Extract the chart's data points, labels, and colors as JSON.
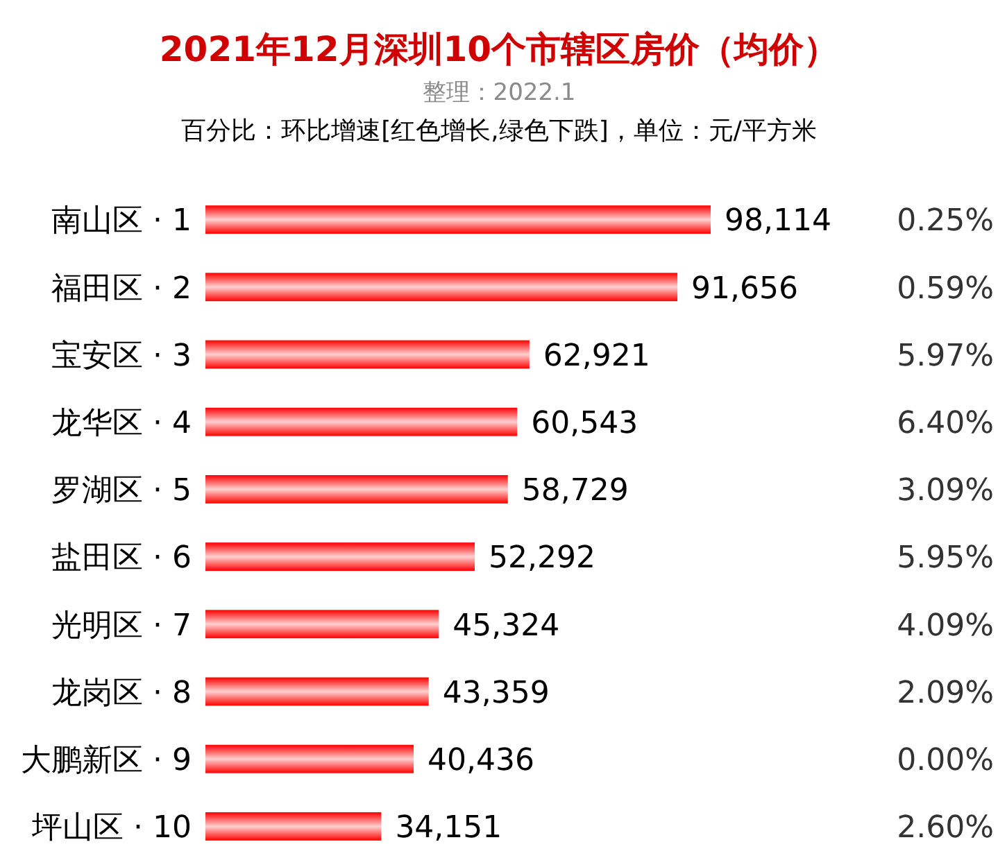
{
  "chart_data": {
    "type": "bar",
    "orientation": "horizontal",
    "title": "2021年12月深圳10个市辖区房价（均价）",
    "subtitle": "整理：2022.1",
    "annotations": [
      "百分比：环比增速[红色增长,绿色下跌]，单位：元/平方米"
    ],
    "categories": [
      "南山区 · 1",
      "福田区 · 2",
      "宝安区 · 3",
      "龙华区 · 4",
      "罗湖区 · 5",
      "盐田区 · 6",
      "光明区 · 7",
      "龙岗区 · 8",
      "大鹏新区 · 9",
      "坪山区 · 10"
    ],
    "y2_categories": [
      "0.25%",
      "0.59%",
      "5.97%",
      "6.40%",
      "3.09%",
      "5.95%",
      "4.09%",
      "2.09%",
      "0.00%",
      "2.60%"
    ],
    "values": [
      98114,
      91656,
      62921,
      60543,
      58729,
      52292,
      45324,
      43359,
      40436,
      34151
    ],
    "value_labels": [
      "98,114",
      "91,656",
      "62,921",
      "60,543",
      "58,729",
      "52,292",
      "45,324",
      "43,359",
      "40,436",
      "34,151"
    ],
    "color": "#ff0000"
  }
}
